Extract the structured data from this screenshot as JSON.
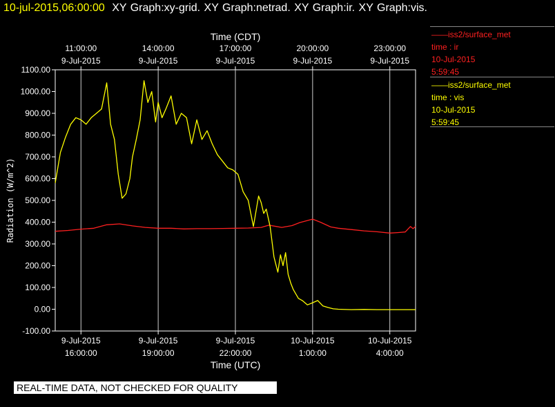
{
  "title": {
    "timestamp": "10-jul-2015,06:00:00",
    "graphs": "XY Graph:xy-grid.  XY Graph:netrad.  XY Graph:ir.  XY Graph:vis."
  },
  "legend": [
    {
      "name": "iss2/surface_met",
      "lines": [
        "time : ir",
        "10-Jul-2015",
        "5:59:45"
      ],
      "color": "#ff2020"
    },
    {
      "name": "iss2/surface_met",
      "lines": [
        "time : vis",
        "10-Jul-2015",
        "5:59:45"
      ],
      "color": "#ffff00"
    }
  ],
  "footer": "REAL-TIME DATA, NOT CHECKED FOR QUALITY",
  "chart_data": {
    "type": "line",
    "ylabel": "Radiation (W/m^2)",
    "xlabel_bottom": "Time (UTC)",
    "xlabel_top": "Time (CDT)",
    "xlim_utc_hours": [
      15.0,
      29.0
    ],
    "ylim": [
      -100,
      1100
    ],
    "yticks": [
      "1100.00",
      "1000.00",
      "900.00",
      "800.00",
      "700.00",
      "600.00",
      "500.00",
      "400.00",
      "300.00",
      "200.00",
      "100.00",
      "0.00",
      "-100.00"
    ],
    "xticks_bottom": [
      {
        "t": 16,
        "date": "9-Jul-2015",
        "time": "16:00:00"
      },
      {
        "t": 19,
        "date": "9-Jul-2015",
        "time": "19:00:00"
      },
      {
        "t": 22,
        "date": "9-Jul-2015",
        "time": "22:00:00"
      },
      {
        "t": 25,
        "date": "10-Jul-2015",
        "time": "1:00:00"
      },
      {
        "t": 28,
        "date": "10-Jul-2015",
        "time": "4:00:00"
      }
    ],
    "xticks_top": [
      {
        "t": 16,
        "time": "11:00:00",
        "date": "9-Jul-2015"
      },
      {
        "t": 19,
        "time": "14:00:00",
        "date": "9-Jul-2015"
      },
      {
        "t": 22,
        "time": "17:00:00",
        "date": "9-Jul-2015"
      },
      {
        "t": 25,
        "time": "20:00:00",
        "date": "9-Jul-2015"
      },
      {
        "t": 28,
        "time": "23:00:00",
        "date": "9-Jul-2015"
      }
    ],
    "grid": "vertical",
    "series": [
      {
        "name": "ir",
        "color": "#ff2020",
        "x": [
          15.0,
          15.5,
          16.0,
          16.5,
          17.0,
          17.5,
          18.0,
          18.5,
          19.0,
          19.5,
          20.0,
          20.5,
          21.0,
          21.5,
          22.0,
          22.5,
          23.0,
          23.3,
          23.6,
          23.8,
          24.2,
          24.5,
          25.0,
          25.3,
          25.7,
          26.0,
          26.5,
          27.0,
          27.5,
          28.0,
          28.3,
          28.6,
          28.8,
          28.9,
          29.0
        ],
        "y": [
          358,
          362,
          368,
          372,
          388,
          392,
          383,
          376,
          372,
          372,
          369,
          370,
          370,
          371,
          372,
          373,
          376,
          386,
          380,
          376,
          384,
          398,
          414,
          400,
          378,
          372,
          366,
          360,
          356,
          350,
          352,
          355,
          380,
          370,
          380
        ]
      },
      {
        "name": "vis",
        "color": "#ffff00",
        "x": [
          15.0,
          15.2,
          15.4,
          15.6,
          15.8,
          16.0,
          16.2,
          16.4,
          16.6,
          16.8,
          17.0,
          17.15,
          17.3,
          17.45,
          17.6,
          17.75,
          17.9,
          18.0,
          18.15,
          18.3,
          18.45,
          18.6,
          18.75,
          18.9,
          19.0,
          19.15,
          19.3,
          19.5,
          19.7,
          19.9,
          20.1,
          20.3,
          20.5,
          20.7,
          20.9,
          21.1,
          21.3,
          21.5,
          21.7,
          21.9,
          22.1,
          22.3,
          22.5,
          22.7,
          22.9,
          23.0,
          23.1,
          23.2,
          23.35,
          23.5,
          23.65,
          23.75,
          23.85,
          23.95,
          24.05,
          24.15,
          24.25,
          24.35,
          24.45,
          24.6,
          24.8,
          25.0,
          25.2,
          25.4,
          25.6,
          25.8,
          26.0,
          26.5,
          27.0,
          27.5,
          28.0,
          28.5,
          29.0
        ],
        "y": [
          580,
          720,
          790,
          850,
          880,
          870,
          850,
          880,
          900,
          920,
          1040,
          850,
          780,
          620,
          510,
          530,
          600,
          700,
          780,
          870,
          1050,
          950,
          1000,
          860,
          950,
          880,
          920,
          980,
          850,
          900,
          880,
          760,
          870,
          780,
          820,
          760,
          710,
          680,
          650,
          640,
          620,
          540,
          500,
          380,
          520,
          490,
          440,
          460,
          380,
          240,
          170,
          250,
          200,
          260,
          160,
          120,
          90,
          70,
          50,
          40,
          20,
          30,
          40,
          15,
          8,
          2,
          0,
          -2,
          -1,
          -2,
          -2,
          -2,
          -2
        ]
      }
    ]
  }
}
